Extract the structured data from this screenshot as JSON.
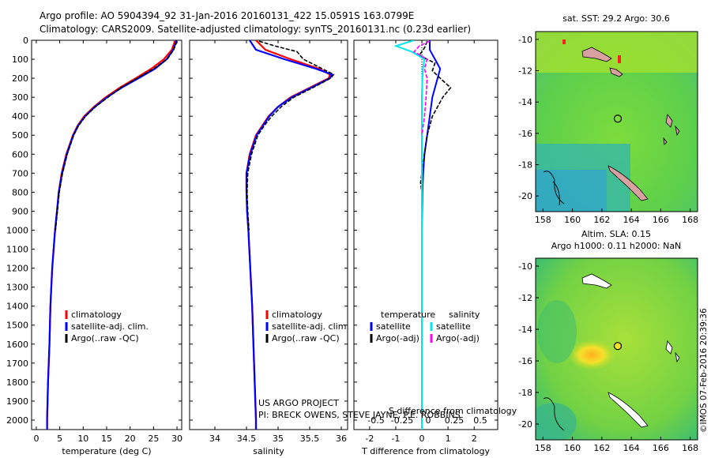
{
  "header": {
    "line1": "Argo profile: AO 5904394_92 31-Jan-2016 20160131_422 15.0591S 163.0799E",
    "line2": "Climatology: CARS2009. Satellite-adjusted climatology: synTS_20160131.nc (0.23d earlier)"
  },
  "colors": {
    "climatology": "#ff0000",
    "satellite": "#0000ff",
    "argo": "#000000",
    "sal_satellite": "#00e5ee",
    "sal_argo": "#ff00ff"
  },
  "chart_data": [
    {
      "type": "line",
      "xlabel": "temperature (deg C)",
      "ylim": [
        2050,
        0
      ],
      "xlim": [
        -1,
        31
      ],
      "xticks": [
        0,
        5,
        10,
        15,
        20,
        25,
        30
      ],
      "legend": [
        "climatology",
        "satellite-adj. clim.",
        "Argo(..raw -QC)"
      ],
      "series": [
        {
          "name": "climatology",
          "depth": [
            0,
            50,
            100,
            150,
            200,
            250,
            300,
            350,
            400,
            450,
            500,
            600,
            700,
            800,
            900,
            1000,
            1200,
            1400,
            1600,
            1800,
            2000,
            2050
          ],
          "values": [
            29.6,
            28.9,
            27.2,
            24.5,
            21.2,
            17.8,
            14.8,
            12.3,
            10.2,
            8.8,
            7.8,
            6.4,
            5.4,
            4.8,
            4.4,
            4.0,
            3.4,
            3.0,
            2.8,
            2.5,
            2.3,
            2.3
          ]
        },
        {
          "name": "satellite-adj. clim.",
          "depth": [
            0,
            50,
            100,
            150,
            200,
            250,
            300,
            350,
            400,
            450,
            500,
            600,
            700,
            800,
            900,
            1000,
            1200,
            1400,
            1600,
            1800,
            2000,
            2050
          ],
          "values": [
            29.9,
            29.2,
            27.8,
            25.3,
            21.8,
            18.2,
            15.1,
            12.5,
            10.4,
            8.9,
            7.9,
            6.5,
            5.5,
            4.8,
            4.4,
            4.0,
            3.4,
            3.0,
            2.8,
            2.5,
            2.3,
            2.3
          ]
        },
        {
          "name": "Argo(..raw -QC)",
          "depth": [
            5,
            50,
            100,
            150,
            200,
            250,
            300,
            350,
            400,
            450,
            500,
            600,
            700,
            800,
            900,
            1000
          ],
          "values": [
            30.0,
            29.3,
            27.9,
            25.0,
            21.5,
            18.0,
            15.3,
            12.6,
            10.5,
            9.0,
            8.0,
            6.6,
            5.6,
            4.9,
            4.5,
            4.1
          ]
        }
      ]
    },
    {
      "type": "line",
      "xlabel": "salinity",
      "ylim": [
        2050,
        0
      ],
      "xlim": [
        33.6,
        36.1
      ],
      "xticks": [
        34,
        34.5,
        35,
        35.5,
        36
      ],
      "legend": [
        "climatology",
        "satellite-adj. clim.",
        "Argo(..raw -QC)"
      ],
      "series": [
        {
          "name": "climatology",
          "depth": [
            0,
            50,
            100,
            150,
            180,
            200,
            250,
            300,
            350,
            400,
            450,
            500,
            600,
            700,
            800,
            900,
            1000,
            1200,
            1400,
            1600,
            1800,
            2000,
            2050
          ],
          "values": [
            34.65,
            34.8,
            35.2,
            35.65,
            35.82,
            35.8,
            35.5,
            35.2,
            35.0,
            34.85,
            34.75,
            34.65,
            34.55,
            34.5,
            34.5,
            34.51,
            34.53,
            34.56,
            34.59,
            34.61,
            34.63,
            34.65,
            34.65
          ]
        },
        {
          "name": "satellite-adj. clim.",
          "depth": [
            0,
            50,
            100,
            150,
            180,
            200,
            250,
            300,
            350,
            400,
            450,
            500,
            600,
            700,
            800,
            900,
            1000,
            1200,
            1400,
            1600,
            1800,
            2000,
            2050
          ],
          "values": [
            34.55,
            34.65,
            35.1,
            35.6,
            35.85,
            35.82,
            35.52,
            35.22,
            35.0,
            34.86,
            34.76,
            34.66,
            34.56,
            34.5,
            34.5,
            34.51,
            34.53,
            34.56,
            34.59,
            34.61,
            34.63,
            34.65,
            34.65
          ]
        },
        {
          "name": "Argo(..raw -QC)",
          "depth": [
            5,
            30,
            60,
            100,
            150,
            180,
            200,
            250,
            300,
            350,
            400,
            450,
            500,
            600,
            700,
            800,
            900,
            1000
          ],
          "values": [
            34.7,
            34.95,
            35.3,
            35.4,
            35.7,
            35.88,
            35.83,
            35.55,
            35.25,
            35.05,
            34.9,
            34.78,
            34.68,
            34.58,
            34.52,
            34.51,
            34.52,
            34.54
          ]
        }
      ]
    },
    {
      "type": "line",
      "xlabel": "T difference from climatology",
      "xlabel_top": "S difference from climatology",
      "ylim": [
        2050,
        0
      ],
      "xlim": [
        -2.6,
        2.9
      ],
      "xticks": [
        -2,
        -1,
        0,
        1,
        2
      ],
      "xticks_top": [
        "-0.5",
        "-0.25",
        "0",
        "0.25",
        "0.5"
      ],
      "legend_temperature": [
        "temperature",
        "satellite",
        "Argo(-adj)"
      ],
      "legend_salinity": [
        "salinity",
        "satellite",
        "Argo(-adj)"
      ],
      "series": [
        {
          "name": "satellite",
          "group": "temperature",
          "depth": [
            0,
            50,
            100,
            150,
            200,
            300,
            400,
            500,
            600,
            700,
            800,
            1000,
            1500,
            2050
          ],
          "values": [
            0.3,
            0.3,
            0.5,
            0.7,
            0.6,
            0.4,
            0.3,
            0.2,
            0.1,
            0.05,
            0.02,
            0.0,
            0.0,
            0.0
          ]
        },
        {
          "name": "Argo(-adj)",
          "group": "temperature",
          "depth": [
            5,
            40,
            80,
            120,
            160,
            200,
            250,
            300,
            350,
            400,
            450,
            500,
            550,
            600,
            650,
            700,
            750,
            800
          ],
          "values": [
            0.2,
            0.1,
            -0.1,
            0.5,
            0.4,
            0.7,
            1.1,
            0.8,
            0.6,
            0.4,
            0.3,
            0.2,
            0.15,
            0.1,
            0.05,
            0.0,
            -0.05,
            0.0
          ]
        },
        {
          "name": "satellite",
          "group": "salinity",
          "depth": [
            0,
            30,
            60,
            100,
            150,
            200,
            300,
            500,
            1000,
            1500,
            2050
          ],
          "values": [
            -0.15,
            -0.5,
            -0.2,
            0.05,
            0.02,
            0.01,
            0.0,
            0.0,
            0.0,
            0.0,
            0.0
          ]
        },
        {
          "name": "Argo(-adj)",
          "group": "salinity",
          "depth": [
            5,
            30,
            60,
            100,
            150,
            200,
            300,
            400,
            500
          ],
          "values": [
            0.15,
            -0.05,
            -0.15,
            0.1,
            0.05,
            0.1,
            0.08,
            0.05,
            0.0
          ]
        }
      ],
      "annotations": [
        "US ARGO PROJECT",
        "PI: BRECK OWENS, STEVE JAYNE, P.E. ROBBINS"
      ]
    },
    {
      "type": "heatmap",
      "title": "sat. SST: 29.2 Argo: 30.6",
      "xlim": [
        157.5,
        168.5
      ],
      "ylim": [
        -21,
        -9.5
      ],
      "xticks": [
        158,
        160,
        162,
        164,
        166,
        168
      ],
      "yticks": [
        -10,
        -12,
        -14,
        -16,
        -18,
        -20
      ],
      "marker": {
        "lon": 163.08,
        "lat": -15.06
      }
    },
    {
      "type": "heatmap",
      "title": "Altim. SLA: 0.15",
      "subtitle": "Argo h1000: 0.11 h2000: NaN",
      "xlim": [
        157.5,
        168.5
      ],
      "ylim": [
        -21,
        -9.5
      ],
      "xticks": [
        158,
        160,
        162,
        164,
        166,
        168
      ],
      "yticks": [
        -10,
        -12,
        -14,
        -16,
        -18,
        -20
      ],
      "marker": {
        "lon": 163.08,
        "lat": -15.06
      }
    }
  ],
  "stamp": "©IMOS 07-Feb-2016 20:39:36"
}
